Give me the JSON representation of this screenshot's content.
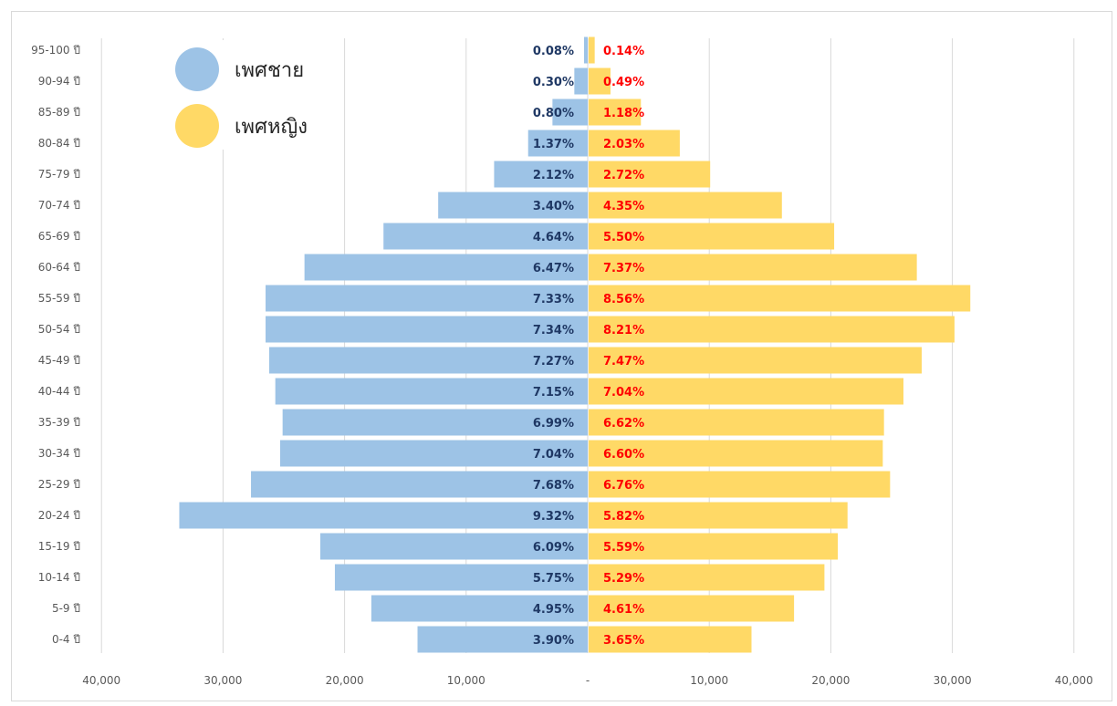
{
  "chart_data": {
    "type": "bar",
    "orientation": "horizontal-population-pyramid",
    "categories": [
      "0-4 ปี",
      "5-9 ปี",
      "10-14 ปี",
      "15-19 ปี",
      "20-24 ปี",
      "25-29 ปี",
      "30-34 ปี",
      "35-39 ปี",
      "40-44 ปี",
      "45-49 ปี",
      "50-54 ปี",
      "55-59 ปี",
      "60-64 ปี",
      "65-69 ปี",
      "70-74 ปี",
      "75-79 ปี",
      "80-84 ปี",
      "85-89 ปี",
      "90-94 ปี",
      "95-100 ปี"
    ],
    "series": [
      {
        "name": "เพศชาย",
        "color": "#9dc3e6",
        "values": [
          14000,
          17800,
          20800,
          22000,
          33600,
          27700,
          25300,
          25100,
          25700,
          26200,
          26500,
          26500,
          23300,
          16800,
          12300,
          7700,
          4900,
          2900,
          1100,
          300
        ],
        "labels": [
          "3.90%",
          "4.95%",
          "5.75%",
          "6.09%",
          "9.32%",
          "7.68%",
          "7.04%",
          "6.99%",
          "7.15%",
          "7.27%",
          "7.34%",
          "7.33%",
          "6.47%",
          "4.64%",
          "3.40%",
          "2.12%",
          "1.37%",
          "0.80%",
          "0.30%",
          "0.08%"
        ]
      },
      {
        "name": "เพศหญิง",
        "color": "#ffd966",
        "values": [
          13400,
          16900,
          19400,
          20500,
          21300,
          24800,
          24200,
          24300,
          25900,
          27400,
          30100,
          31400,
          27000,
          20200,
          15900,
          10000,
          7500,
          4300,
          1800,
          500
        ],
        "labels": [
          "3.65%",
          "4.61%",
          "5.29%",
          "5.59%",
          "5.82%",
          "6.76%",
          "6.60%",
          "6.62%",
          "7.04%",
          "7.47%",
          "8.21%",
          "8.56%",
          "7.37%",
          "5.50%",
          "4.35%",
          "2.72%",
          "2.03%",
          "1.18%",
          "0.49%",
          "0.14%"
        ]
      }
    ],
    "x_ticks": [
      "40,000",
      "30,000",
      "20,000",
      "10,000",
      "-",
      "10,000",
      "20,000",
      "30,000",
      "40,000"
    ],
    "xlim": [
      -40000,
      40000
    ],
    "grid": true,
    "legend": "top-left"
  }
}
